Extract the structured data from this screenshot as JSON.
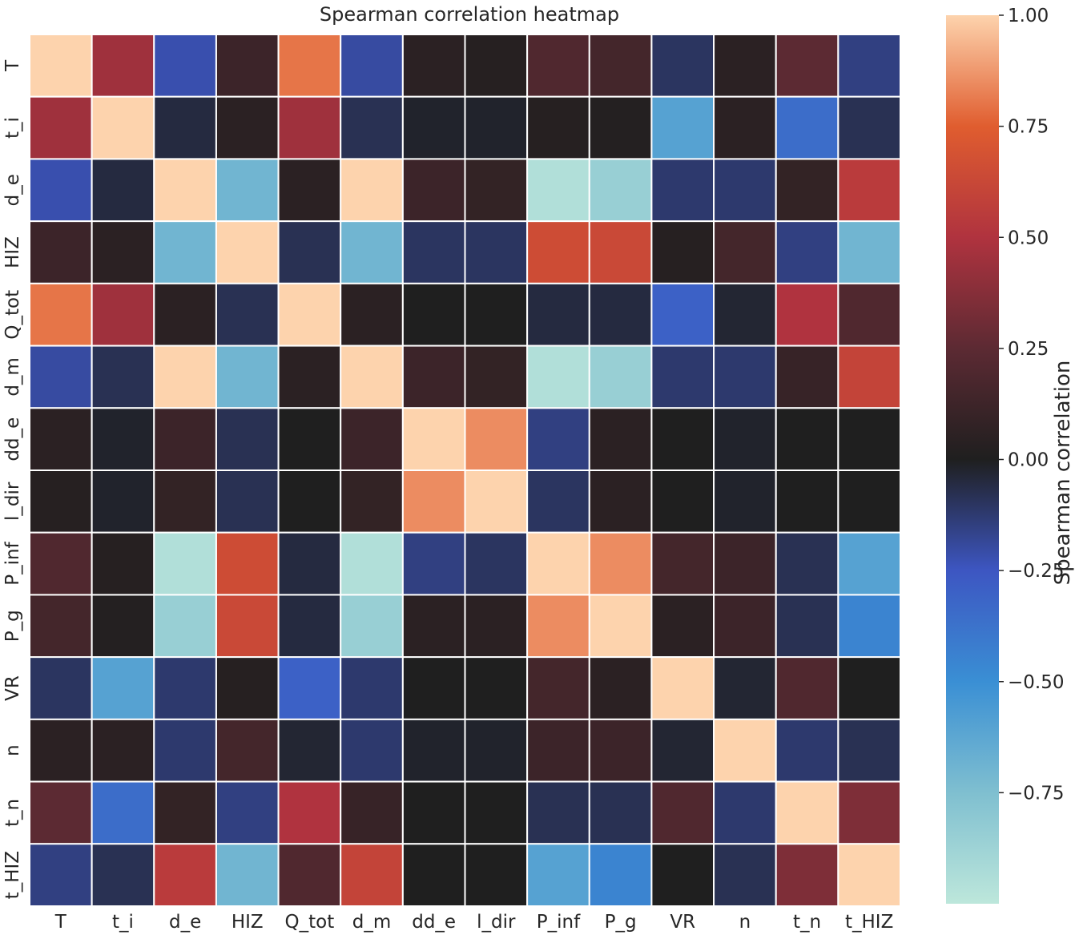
{
  "chart_data": {
    "type": "heatmap",
    "title": "Spearman correlation heatmap",
    "x_labels": [
      "T",
      "t_i",
      "d_e",
      "HIZ",
      "Q_tot",
      "d_m",
      "dd_e",
      "l_dir",
      "P_inf",
      "P_g",
      "VR",
      "n",
      "t_n",
      "t_HIZ"
    ],
    "y_labels": [
      "T",
      "t_i",
      "d_e",
      "HIZ",
      "Q_tot",
      "d_m",
      "dd_e",
      "l_dir",
      "P_inf",
      "P_g",
      "VR",
      "n",
      "t_n",
      "t_HIZ"
    ],
    "values": [
      [
        1.0,
        0.45,
        -0.22,
        0.12,
        0.8,
        -0.2,
        0.05,
        0.03,
        0.2,
        0.15,
        -0.1,
        0.05,
        0.25,
        -0.15
      ],
      [
        0.45,
        1.0,
        -0.05,
        0.05,
        0.45,
        -0.08,
        -0.02,
        -0.02,
        0.03,
        0.02,
        -0.6,
        0.05,
        -0.35,
        -0.08
      ],
      [
        -0.22,
        -0.05,
        1.0,
        -0.7,
        0.05,
        1.0,
        0.12,
        0.08,
        -0.95,
        -0.85,
        -0.12,
        -0.12,
        0.08,
        0.55
      ],
      [
        0.12,
        0.05,
        -0.7,
        1.0,
        -0.08,
        -0.7,
        -0.1,
        -0.1,
        0.65,
        0.63,
        0.03,
        0.15,
        -0.15,
        -0.7
      ],
      [
        0.8,
        0.45,
        0.05,
        -0.08,
        1.0,
        0.05,
        0.0,
        0.0,
        -0.05,
        -0.05,
        -0.3,
        -0.03,
        0.5,
        0.2
      ],
      [
        -0.2,
        -0.08,
        1.0,
        -0.7,
        0.05,
        1.0,
        0.12,
        0.08,
        -0.95,
        -0.85,
        -0.12,
        -0.12,
        0.1,
        0.6
      ],
      [
        0.05,
        -0.02,
        0.12,
        -0.08,
        0.0,
        0.12,
        1.0,
        0.85,
        -0.15,
        0.05,
        0.0,
        -0.02,
        0.0,
        0.0
      ],
      [
        0.03,
        -0.02,
        0.08,
        -0.08,
        0.0,
        0.08,
        0.85,
        1.0,
        -0.1,
        0.05,
        0.0,
        -0.02,
        0.0,
        0.0
      ],
      [
        0.2,
        0.03,
        -0.95,
        0.65,
        -0.05,
        -0.95,
        -0.15,
        -0.1,
        1.0,
        0.85,
        0.15,
        0.12,
        -0.08,
        -0.6
      ],
      [
        0.15,
        0.02,
        -0.85,
        0.63,
        -0.05,
        -0.85,
        0.05,
        0.05,
        0.85,
        1.0,
        0.05,
        0.12,
        -0.08,
        -0.45
      ],
      [
        -0.1,
        -0.6,
        -0.12,
        0.03,
        -0.3,
        -0.12,
        0.0,
        0.0,
        0.15,
        0.05,
        1.0,
        -0.03,
        0.2,
        0.0
      ],
      [
        0.05,
        0.05,
        -0.12,
        0.15,
        -0.03,
        -0.12,
        -0.02,
        -0.02,
        0.12,
        0.12,
        -0.03,
        1.0,
        -0.12,
        -0.08
      ],
      [
        0.25,
        -0.35,
        0.08,
        -0.15,
        0.5,
        0.1,
        0.0,
        0.0,
        -0.08,
        -0.08,
        0.2,
        -0.12,
        1.0,
        0.35
      ],
      [
        -0.15,
        -0.08,
        0.55,
        -0.7,
        0.2,
        0.6,
        0.0,
        0.0,
        -0.6,
        -0.45,
        0.0,
        -0.08,
        0.35,
        1.0
      ]
    ],
    "vmin": -1.0,
    "vmax": 1.0,
    "colormap": "icefire",
    "colorbar": {
      "label": "Spearman correlation",
      "ticks": [
        "1.00",
        "0.75",
        "0.50",
        "0.25",
        "0.00",
        "−0.25",
        "−0.50",
        "−0.75"
      ],
      "tick_values": [
        1.0,
        0.75,
        0.5,
        0.25,
        0.0,
        -0.25,
        -0.5,
        -0.75
      ]
    },
    "grid": true,
    "legend": "right"
  }
}
